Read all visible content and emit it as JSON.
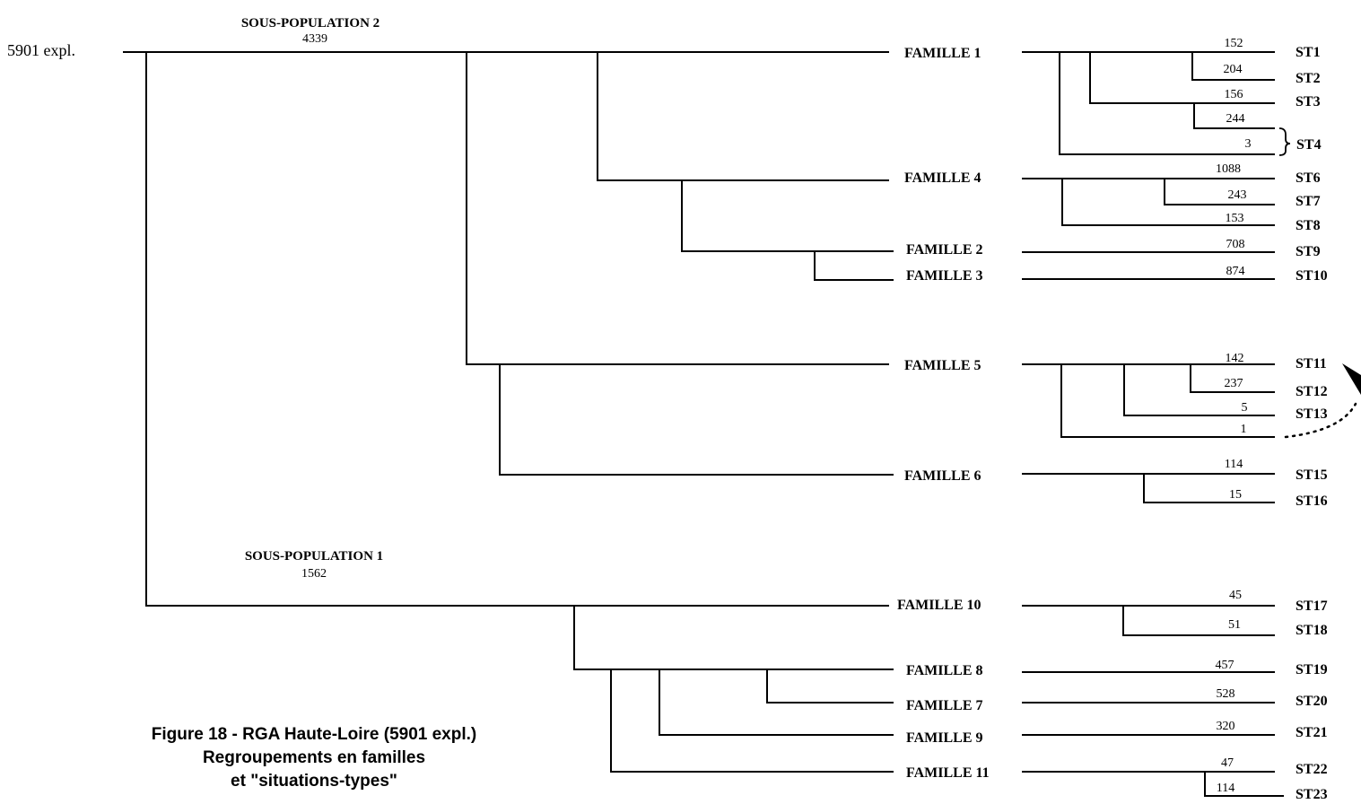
{
  "root": {
    "label": "5901 expl."
  },
  "subpopulations": [
    {
      "name": "SOUS-POPULATION 2",
      "count": "4339"
    },
    {
      "name": "SOUS-POPULATION 1",
      "count": "1562"
    }
  ],
  "families": [
    {
      "id": "f1",
      "label": "FAMILLE 1"
    },
    {
      "id": "f4",
      "label": "FAMILLE 4"
    },
    {
      "id": "f2",
      "label": "FAMILLE 2"
    },
    {
      "id": "f3",
      "label": "FAMILLE 3"
    },
    {
      "id": "f5",
      "label": "FAMILLE 5"
    },
    {
      "id": "f6",
      "label": "FAMILLE 6"
    },
    {
      "id": "f10",
      "label": "FAMILLE 10"
    },
    {
      "id": "f8",
      "label": "FAMILLE 8"
    },
    {
      "id": "f7",
      "label": "FAMILLE 7"
    },
    {
      "id": "f9",
      "label": "FAMILLE 9"
    },
    {
      "id": "f11",
      "label": "FAMILLE 11"
    }
  ],
  "situations": [
    {
      "family": "f1",
      "label": "ST1",
      "count": "152"
    },
    {
      "family": "f1",
      "label": "ST2",
      "count": "204"
    },
    {
      "family": "f1",
      "label": "ST3",
      "count": "156"
    },
    {
      "family": "f1",
      "label": "ST4",
      "count": "244"
    },
    {
      "family": "f1",
      "label": "",
      "count": "3"
    },
    {
      "family": "f4",
      "label": "ST6",
      "count": "1088"
    },
    {
      "family": "f4",
      "label": "ST7",
      "count": "243"
    },
    {
      "family": "f4",
      "label": "ST8",
      "count": "153"
    },
    {
      "family": "f2",
      "label": "ST9",
      "count": "708"
    },
    {
      "family": "f3",
      "label": "ST10",
      "count": "874"
    },
    {
      "family": "f5",
      "label": "ST11",
      "count": "142"
    },
    {
      "family": "f5",
      "label": "ST12",
      "count": "237"
    },
    {
      "family": "f5",
      "label": "ST13",
      "count": "5"
    },
    {
      "family": "f5",
      "label": "",
      "count": "1"
    },
    {
      "family": "f6",
      "label": "ST15",
      "count": "114"
    },
    {
      "family": "f6",
      "label": "ST16",
      "count": "15"
    },
    {
      "family": "f10",
      "label": "ST17",
      "count": "45"
    },
    {
      "family": "f10",
      "label": "ST18",
      "count": "51"
    },
    {
      "family": "f8",
      "label": "ST19",
      "count": "457"
    },
    {
      "family": "f7",
      "label": "ST20",
      "count": "528"
    },
    {
      "family": "f9",
      "label": "ST21",
      "count": "320"
    },
    {
      "family": "f11",
      "label": "ST22",
      "count": "47"
    },
    {
      "family": "f11",
      "label": "ST23",
      "count": "114"
    }
  ],
  "caption": {
    "line1": "Figure 18 - RGA Haute-Loire (5901 expl.)",
    "line2": "Regroupements en familles",
    "line3": "et \"situations-types\""
  }
}
